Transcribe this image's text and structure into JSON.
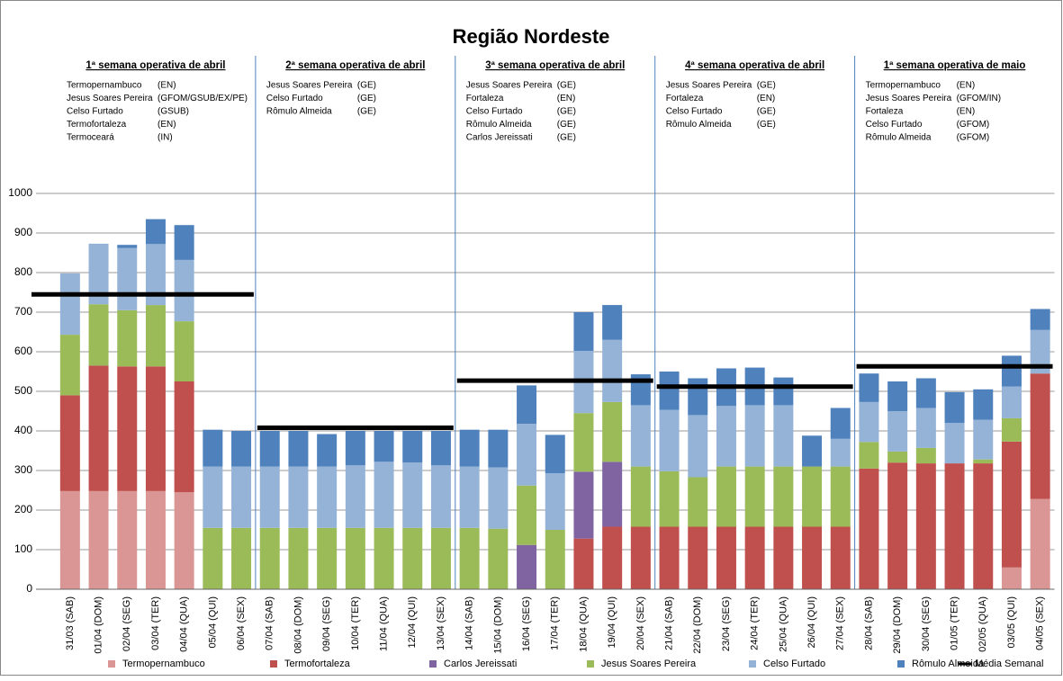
{
  "chart_data": {
    "type": "bar",
    "stacked": true,
    "title": "Região Nordeste",
    "categories": [
      "31/03 (SAB)",
      "01/04 (DOM)",
      "02/04 (SEG)",
      "03/04 (TER)",
      "04/04 (QUA)",
      "05/04 (QUI)",
      "06/04 (SEX)",
      "07/04 (SAB)",
      "08/04 (DOM)",
      "09/04 (SEG)",
      "10/04 (TER)",
      "11/04 (QUA)",
      "12/04 (QUI)",
      "13/04 (SEX)",
      "14/04 (SAB)",
      "15/04 (DOM)",
      "16/04 (SEG)",
      "17/04 (TER)",
      "18/04 (QUA)",
      "19/04 (QUI)",
      "20/04 (SEX)",
      "21/04 (SAB)",
      "22/04 (DOM)",
      "23/04 (SEG)",
      "24/04 (TER)",
      "25/04 (QUA)",
      "26/04 (QUI)",
      "27/04 (SEX)",
      "28/04 (SAB)",
      "29/04 (DOM)",
      "30/04 (SEG)",
      "01/05 (TER)",
      "02/05 (QUA)",
      "03/05 (QUI)",
      "04/05 (SEX)"
    ],
    "series": [
      {
        "name": "Termopernambuco",
        "color": "#d99694",
        "values": [
          248,
          248,
          248,
          248,
          245,
          null,
          null,
          null,
          null,
          null,
          null,
          null,
          null,
          null,
          null,
          null,
          null,
          null,
          null,
          null,
          null,
          null,
          null,
          null,
          null,
          null,
          null,
          null,
          null,
          null,
          null,
          null,
          null,
          55,
          228
        ]
      },
      {
        "name": "Termofortaleza",
        "color": "#c0504d",
        "values": [
          242,
          317,
          315,
          315,
          280,
          null,
          null,
          null,
          null,
          null,
          null,
          null,
          null,
          null,
          null,
          null,
          null,
          null,
          128,
          158,
          158,
          158,
          158,
          158,
          158,
          158,
          158,
          158,
          305,
          320,
          318,
          318,
          318,
          318,
          317
        ]
      },
      {
        "name": "Carlos Jereissati",
        "color": "#8064a2",
        "values": [
          null,
          null,
          null,
          null,
          null,
          null,
          null,
          null,
          null,
          null,
          null,
          null,
          null,
          null,
          null,
          null,
          112,
          null,
          169,
          164,
          null,
          null,
          null,
          null,
          null,
          null,
          null,
          null,
          null,
          null,
          null,
          null,
          null,
          null,
          null
        ]
      },
      {
        "name": "Jesus Soares Pereira",
        "color": "#9bbb59",
        "values": [
          153,
          155,
          142,
          155,
          152,
          155,
          155,
          155,
          155,
          155,
          155,
          155,
          155,
          155,
          155,
          153,
          150,
          150,
          148,
          151,
          152,
          140,
          125,
          152,
          152,
          152,
          152,
          152,
          67,
          28,
          39,
          null,
          10,
          59,
          null
        ]
      },
      {
        "name": "Celso Furtado",
        "color": "#95b3d7",
        "values": [
          155,
          153,
          157,
          154,
          155,
          155,
          155,
          155,
          155,
          155,
          158,
          167,
          165,
          158,
          155,
          155,
          156,
          143,
          157,
          157,
          155,
          155,
          157,
          153,
          155,
          155,
          null,
          70,
          101,
          102,
          101,
          102,
          100,
          80,
          110
        ]
      },
      {
        "name": "Rômulo Almeida",
        "color": "#4f81bd",
        "values": [
          null,
          null,
          8,
          63,
          88,
          93,
          90,
          90,
          90,
          82,
          87,
          78,
          80,
          87,
          93,
          95,
          97,
          97,
          98,
          88,
          78,
          97,
          93,
          95,
          95,
          70,
          78,
          78,
          72,
          75,
          75,
          78,
          77,
          78,
          53
        ]
      }
    ],
    "weekly_mean": {
      "name": "Média Semanal",
      "color": "#000000",
      "values": [
        745,
        408,
        527,
        512,
        563
      ]
    },
    "ylim": [
      0,
      1000
    ],
    "yticks": [
      0,
      100,
      200,
      300,
      400,
      500,
      600,
      700,
      800,
      900,
      1000
    ],
    "grid": true,
    "legend": "bottom",
    "weeks": [
      {
        "title": "1ª semana operativa de abril",
        "items": [
          {
            "name": "Termopernambuco",
            "code": "(EN)"
          },
          {
            "name": "Jesus Soares Pereira",
            "code": "(GFOM/GSUB/EX/PE)"
          },
          {
            "name": "Celso Furtado",
            "code": "(GSUB)"
          },
          {
            "name": "Termofortaleza",
            "code": "(EN)"
          },
          {
            "name": "Termoceará",
            "code": "(IN)"
          }
        ]
      },
      {
        "title": "2ª semana operativa de abril",
        "items": [
          {
            "name": "Jesus Soares Pereira",
            "code": "(GE)"
          },
          {
            "name": "Celso Furtado",
            "code": "(GE)"
          },
          {
            "name": "Rômulo Almeida",
            "code": "(GE)"
          }
        ]
      },
      {
        "title": "3ª semana operativa de abril",
        "items": [
          {
            "name": "Jesus Soares Pereira",
            "code": "(GE)"
          },
          {
            "name": "Fortaleza",
            "code": "(EN)"
          },
          {
            "name": "Celso Furtado",
            "code": "(GE)"
          },
          {
            "name": "Rômulo Almeida",
            "code": "(GE)"
          },
          {
            "name": "Carlos Jereissati",
            "code": "(GE)"
          }
        ]
      },
      {
        "title": "4ª semana operativa de abril",
        "items": [
          {
            "name": "Jesus Soares Pereira",
            "code": "(GE)"
          },
          {
            "name": "Fortaleza",
            "code": "(EN)"
          },
          {
            "name": "Celso Furtado",
            "code": "(GE)"
          },
          {
            "name": "Rômulo Almeida",
            "code": "(GE)"
          }
        ]
      },
      {
        "title": "1ª semana operativa de maio",
        "items": [
          {
            "name": "Termopernambuco",
            "code": "(EN)"
          },
          {
            "name": "Jesus Soares Pereira",
            "code": "(GFOM/IN)"
          },
          {
            "name": "Fortaleza",
            "code": "(EN)"
          },
          {
            "name": "Celso Furtado",
            "code": "(GFOM)"
          },
          {
            "name": "Rômulo Almeida",
            "code": "(GFOM)"
          }
        ]
      }
    ]
  }
}
